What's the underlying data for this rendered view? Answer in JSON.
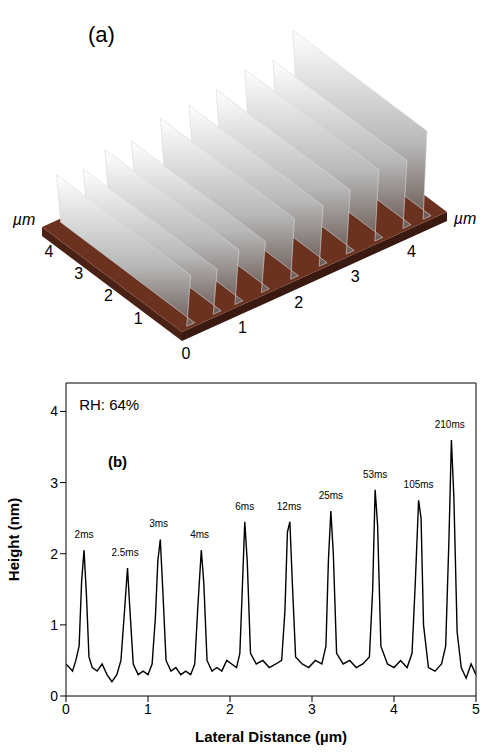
{
  "chart_data": [
    {
      "type": "surface3d",
      "title": "(a)",
      "x_label": "µm",
      "y_label": "µm",
      "xlim": [
        0,
        4.7
      ],
      "ylim": [
        0,
        4.7
      ],
      "xticks": [
        0,
        1,
        2,
        3,
        4
      ],
      "yticks": [
        1,
        2,
        3,
        4
      ]
    },
    {
      "type": "line",
      "x_label": "Lateral Distance (µm)",
      "y_label": "Height (nm)",
      "xlim": [
        0,
        5
      ],
      "ylim": [
        0,
        4.4
      ],
      "xticks": [
        0,
        1,
        2,
        3,
        4,
        5
      ],
      "yticks": [
        0,
        1,
        2,
        3,
        4
      ],
      "color": "#000000",
      "x": [
        0,
        0.04,
        0.08,
        0.12,
        0.16,
        0.19,
        0.22,
        0.25,
        0.28,
        0.32,
        0.38,
        0.44,
        0.5,
        0.56,
        0.62,
        0.67,
        0.72,
        0.75,
        0.78,
        0.82,
        0.88,
        0.94,
        1.0,
        1.05,
        1.09,
        1.12,
        1.15,
        1.18,
        1.22,
        1.28,
        1.34,
        1.4,
        1.46,
        1.52,
        1.57,
        1.61,
        1.65,
        1.68,
        1.72,
        1.78,
        1.84,
        1.9,
        1.96,
        2.02,
        2.08,
        2.12,
        2.15,
        2.18,
        2.21,
        2.25,
        2.32,
        2.4,
        2.48,
        2.56,
        2.63,
        2.67,
        2.7,
        2.73,
        2.76,
        2.8,
        2.88,
        2.96,
        3.04,
        3.12,
        3.17,
        3.2,
        3.23,
        3.26,
        3.3,
        3.38,
        3.46,
        3.54,
        3.62,
        3.7,
        3.74,
        3.77,
        3.8,
        3.84,
        3.92,
        4.0,
        4.08,
        4.16,
        4.22,
        4.26,
        4.3,
        4.33,
        4.36,
        4.42,
        4.5,
        4.58,
        4.63,
        4.67,
        4.7,
        4.73,
        4.77,
        4.82,
        4.88,
        4.94,
        5.0
      ],
      "values": [
        0.45,
        0.4,
        0.35,
        0.5,
        0.7,
        1.6,
        2.05,
        1.4,
        0.55,
        0.4,
        0.35,
        0.45,
        0.3,
        0.2,
        0.3,
        0.5,
        1.3,
        1.8,
        1.2,
        0.45,
        0.3,
        0.35,
        0.3,
        0.45,
        1.1,
        1.9,
        2.2,
        1.5,
        0.5,
        0.35,
        0.4,
        0.3,
        0.35,
        0.3,
        0.45,
        1.3,
        2.05,
        1.6,
        0.5,
        0.35,
        0.4,
        0.35,
        0.5,
        0.45,
        0.4,
        0.6,
        1.5,
        2.45,
        1.9,
        0.6,
        0.45,
        0.5,
        0.4,
        0.45,
        0.5,
        1.2,
        2.3,
        2.45,
        1.6,
        0.55,
        0.45,
        0.4,
        0.5,
        0.45,
        0.7,
        1.9,
        2.6,
        2.0,
        0.6,
        0.45,
        0.5,
        0.4,
        0.45,
        0.55,
        1.5,
        2.9,
        2.4,
        0.7,
        0.45,
        0.4,
        0.5,
        0.4,
        0.6,
        1.6,
        2.75,
        2.5,
        1.0,
        0.4,
        0.35,
        0.45,
        0.7,
        2.2,
        3.6,
        2.8,
        0.9,
        0.4,
        0.25,
        0.45,
        0.3
      ],
      "peak_labels": [
        {
          "text": "2ms",
          "x": 0.22,
          "y": 2.15
        },
        {
          "text": "2.5ms",
          "x": 0.72,
          "y": 1.9
        },
        {
          "text": "3ms",
          "x": 1.13,
          "y": 2.3
        },
        {
          "text": "4ms",
          "x": 1.63,
          "y": 2.15
        },
        {
          "text": "6ms",
          "x": 2.18,
          "y": 2.55
        },
        {
          "text": "12ms",
          "x": 2.72,
          "y": 2.55
        },
        {
          "text": "25ms",
          "x": 3.23,
          "y": 2.7
        },
        {
          "text": "53ms",
          "x": 3.77,
          "y": 3.0
        },
        {
          "text": "105ms",
          "x": 4.3,
          "y": 2.85
        },
        {
          "text": "210ms",
          "x": 4.68,
          "y": 3.7
        }
      ],
      "annotations": [
        {
          "text": "RH: 64%",
          "x": 0.1,
          "y": 4.1
        },
        {
          "text": "(b)",
          "x": 0.45,
          "y": 3.3
        }
      ]
    }
  ]
}
